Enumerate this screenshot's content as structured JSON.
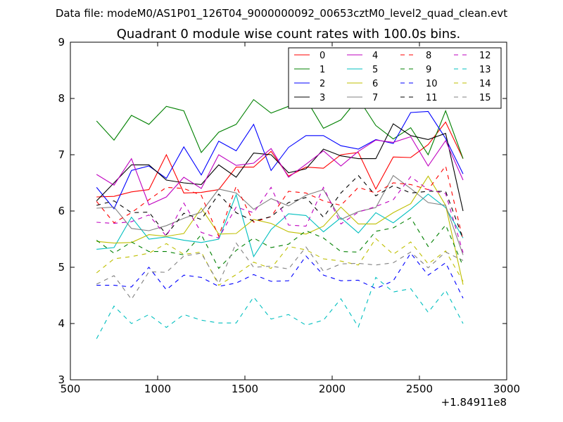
{
  "chart_data": {
    "type": "line",
    "suptitle": "Data file: modeM0/AS1P01_126T04_9000000092_00653cztM0_level2_quad_clean.evt",
    "title": "Quadrant 0 module wise count rates with 100.0s bins.",
    "xlabel": "",
    "ylabel": "",
    "x_offset_label": "+1.84911e8",
    "xlim": [
      500,
      3000
    ],
    "ylim": [
      3,
      9
    ],
    "xticks": [
      500,
      1000,
      1500,
      2000,
      2500,
      3000
    ],
    "yticks": [
      3,
      4,
      5,
      6,
      7,
      8,
      9
    ],
    "legend_position": "top-right",
    "x": [
      650,
      750,
      850,
      950,
      1050,
      1150,
      1250,
      1350,
      1450,
      1550,
      1650,
      1750,
      1850,
      1950,
      2050,
      2150,
      2250,
      2350,
      2450,
      2550,
      2650,
      2750
    ],
    "series": [
      {
        "name": "0",
        "color": "#ff0000",
        "dash": "solid",
        "values": [
          6.25,
          6.26,
          6.34,
          6.38,
          7.0,
          6.32,
          6.33,
          6.38,
          6.78,
          6.78,
          7.06,
          6.62,
          6.78,
          6.76,
          7.0,
          7.04,
          6.39,
          6.96,
          6.95,
          7.18,
          7.58,
          6.93
        ]
      },
      {
        "name": "1",
        "color": "#008000",
        "dash": "solid",
        "values": [
          7.6,
          7.26,
          7.7,
          7.54,
          7.86,
          7.78,
          7.04,
          7.4,
          7.54,
          7.98,
          7.74,
          7.86,
          7.99,
          7.47,
          7.62,
          8.0,
          7.52,
          7.28,
          7.48,
          7.0,
          7.78,
          6.93
        ]
      },
      {
        "name": "2",
        "color": "#0000ff",
        "dash": "solid",
        "values": [
          6.42,
          6.04,
          6.72,
          6.8,
          6.58,
          7.14,
          6.64,
          7.24,
          7.07,
          7.54,
          6.72,
          7.13,
          7.34,
          7.34,
          7.16,
          7.1,
          7.27,
          7.2,
          7.75,
          7.77,
          7.29,
          6.66
        ]
      },
      {
        "name": "3",
        "color": "#000000",
        "dash": "solid",
        "values": [
          6.18,
          6.5,
          6.82,
          6.82,
          6.55,
          6.5,
          6.47,
          6.82,
          6.6,
          7.03,
          7.0,
          6.68,
          6.75,
          7.1,
          6.98,
          6.93,
          6.93,
          7.55,
          7.34,
          7.27,
          7.38,
          6.0
        ]
      },
      {
        "name": "4",
        "color": "#bf00bf",
        "dash": "solid",
        "values": [
          6.65,
          6.46,
          6.93,
          6.11,
          6.25,
          6.6,
          6.4,
          7.0,
          6.81,
          6.85,
          7.11,
          6.6,
          6.83,
          7.07,
          6.8,
          7.06,
          7.26,
          7.22,
          7.32,
          6.8,
          7.25,
          6.55
        ]
      },
      {
        "name": "5",
        "color": "#00bfbf",
        "dash": "solid",
        "values": [
          5.32,
          5.35,
          5.89,
          5.5,
          5.54,
          5.48,
          5.44,
          5.5,
          6.29,
          5.19,
          5.67,
          5.95,
          5.92,
          5.63,
          5.88,
          5.61,
          5.97,
          5.79,
          6.03,
          6.3,
          6.06,
          5.52
        ]
      },
      {
        "name": "6",
        "color": "#bfbf00",
        "dash": "solid",
        "values": [
          5.46,
          5.43,
          5.44,
          5.58,
          5.55,
          5.6,
          6.05,
          5.59,
          5.6,
          5.85,
          5.78,
          5.63,
          5.59,
          5.73,
          6.07,
          5.77,
          5.77,
          5.97,
          6.13,
          6.62,
          6.1,
          4.69
        ]
      },
      {
        "name": "7",
        "color": "#808080",
        "dash": "solid",
        "values": [
          6.05,
          6.07,
          5.69,
          5.65,
          5.74,
          5.87,
          5.98,
          6.39,
          6.32,
          6.03,
          6.22,
          6.09,
          6.28,
          6.38,
          5.85,
          5.99,
          6.06,
          6.63,
          6.4,
          6.15,
          6.1,
          5.22
        ]
      },
      {
        "name": "8",
        "color": "#ff0000",
        "dash": "dashed",
        "values": [
          6.17,
          5.79,
          5.97,
          6.2,
          6.42,
          6.4,
          6.28,
          5.55,
          6.44,
          5.8,
          5.9,
          6.35,
          6.32,
          6.18,
          6.1,
          6.42,
          6.32,
          6.5,
          6.47,
          6.38,
          6.8,
          5.48
        ]
      },
      {
        "name": "9",
        "color": "#008000",
        "dash": "dashed",
        "values": [
          5.48,
          5.25,
          5.45,
          5.28,
          5.28,
          5.22,
          5.58,
          4.98,
          5.3,
          5.52,
          5.35,
          5.41,
          5.65,
          5.52,
          5.28,
          5.27,
          5.64,
          5.7,
          5.88,
          5.37,
          5.75,
          5.02
        ]
      },
      {
        "name": "10",
        "color": "#0000ff",
        "dash": "dashed",
        "values": [
          4.68,
          4.68,
          4.65,
          5.0,
          4.6,
          4.86,
          4.82,
          4.66,
          4.72,
          4.87,
          4.75,
          4.76,
          5.2,
          4.86,
          4.76,
          4.77,
          4.62,
          4.76,
          5.25,
          4.86,
          5.08,
          4.45
        ]
      },
      {
        "name": "11",
        "color": "#000000",
        "dash": "dashed",
        "values": [
          6.1,
          6.18,
          5.97,
          5.98,
          5.58,
          5.96,
          5.85,
          6.3,
          5.97,
          5.82,
          5.9,
          6.15,
          6.24,
          5.89,
          6.32,
          6.63,
          6.27,
          6.45,
          6.32,
          6.35,
          6.35,
          5.51
        ]
      },
      {
        "name": "12",
        "color": "#bf00bf",
        "dash": "dashed",
        "values": [
          5.8,
          5.78,
          5.81,
          5.93,
          5.55,
          6.14,
          5.62,
          5.52,
          6.07,
          5.97,
          6.42,
          5.75,
          5.73,
          6.42,
          5.77,
          5.98,
          6.08,
          6.2,
          6.61,
          6.38,
          6.31,
          5.26
        ]
      },
      {
        "name": "13",
        "color": "#00bfbf",
        "dash": "dashed",
        "values": [
          3.73,
          4.31,
          4.0,
          4.16,
          3.93,
          4.16,
          4.06,
          4.01,
          4.01,
          4.47,
          4.08,
          4.16,
          3.97,
          4.06,
          4.44,
          3.94,
          4.82,
          4.56,
          4.62,
          4.2,
          4.59,
          4.0
        ]
      },
      {
        "name": "14",
        "color": "#bfbf00",
        "dash": "dashed",
        "values": [
          4.9,
          5.15,
          5.19,
          5.25,
          5.42,
          5.23,
          5.27,
          4.68,
          4.87,
          5.09,
          4.98,
          5.37,
          5.31,
          5.15,
          5.11,
          5.04,
          5.51,
          5.23,
          5.45,
          5.06,
          5.29,
          4.75
        ]
      },
      {
        "name": "15",
        "color": "#808080",
        "dash": "dashed",
        "values": [
          4.7,
          4.85,
          4.43,
          4.92,
          4.91,
          5.2,
          5.25,
          4.71,
          5.43,
          5.0,
          5.02,
          4.97,
          5.36,
          4.93,
          5.06,
          5.07,
          5.04,
          5.08,
          5.27,
          4.99,
          5.27,
          5.12
        ]
      }
    ]
  }
}
